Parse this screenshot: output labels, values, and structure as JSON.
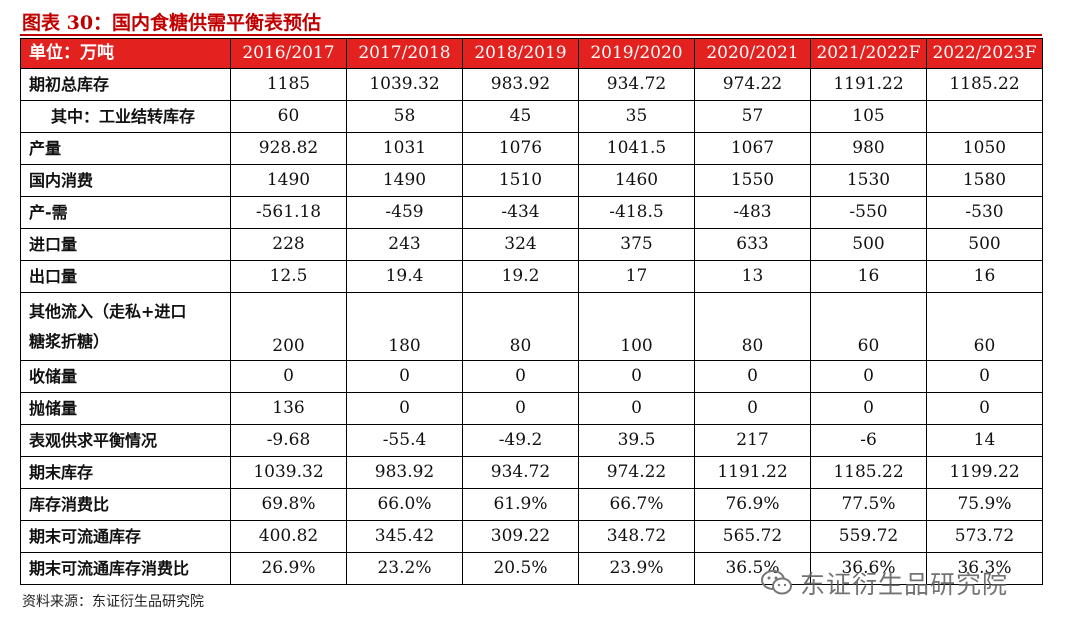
{
  "figure_title": "图表 30：国内食糖供需平衡表预估",
  "table": {
    "header_label": "单位：万吨",
    "columns": [
      "2016/2017",
      "2017/2018",
      "2018/2019",
      "2019/2020",
      "2020/2021",
      "2021/2022F",
      "2022/2023F"
    ],
    "rows": [
      {
        "label": "期初总库存",
        "values": [
          "1185",
          "1039.32",
          "983.92",
          "934.72",
          "974.22",
          "1191.22",
          "1185.22"
        ]
      },
      {
        "label": "其中：工业结转库存",
        "values": [
          "60",
          "58",
          "45",
          "35",
          "57",
          "105",
          ""
        ]
      },
      {
        "label": "产量",
        "values": [
          "928.82",
          "1031",
          "1076",
          "1041.5",
          "1067",
          "980",
          "1050"
        ]
      },
      {
        "label": "国内消费",
        "values": [
          "1490",
          "1490",
          "1510",
          "1460",
          "1550",
          "1530",
          "1580"
        ]
      },
      {
        "label": "产-需",
        "values": [
          "-561.18",
          "-459",
          "-434",
          "-418.5",
          "-483",
          "-550",
          "-530"
        ]
      },
      {
        "label": "进口量",
        "values": [
          "228",
          "243",
          "324",
          "375",
          "633",
          "500",
          "500"
        ]
      },
      {
        "label": "出口量",
        "values": [
          "12.5",
          "19.4",
          "19.2",
          "17",
          "13",
          "16",
          "16"
        ]
      },
      {
        "label": "其他流入（走私+进口糖浆折糖）",
        "label_line1": "其他流入（走私+进口",
        "label_line2": "糖浆折糖）",
        "values": [
          "200",
          "180",
          "80",
          "100",
          "80",
          "60",
          "60"
        ]
      },
      {
        "label": "收储量",
        "values": [
          "0",
          "0",
          "0",
          "0",
          "0",
          "0",
          "0"
        ]
      },
      {
        "label": "抛储量",
        "values": [
          "136",
          "0",
          "0",
          "0",
          "0",
          "0",
          "0"
        ]
      },
      {
        "label": "表观供求平衡情况",
        "values": [
          "-9.68",
          "-55.4",
          "-49.2",
          "39.5",
          "217",
          "-6",
          "14"
        ]
      },
      {
        "label": "期末库存",
        "values": [
          "1039.32",
          "983.92",
          "934.72",
          "974.22",
          "1191.22",
          "1185.22",
          "1199.22"
        ]
      },
      {
        "label": "库存消费比",
        "values": [
          "69.8%",
          "66.0%",
          "61.9%",
          "66.7%",
          "76.9%",
          "77.5%",
          "75.9%"
        ]
      },
      {
        "label": "期末可流通库存",
        "values": [
          "400.82",
          "345.42",
          "309.22",
          "348.72",
          "565.72",
          "559.72",
          "573.72"
        ]
      },
      {
        "label": "期末可流通库存消费比",
        "values": [
          "26.9%",
          "23.2%",
          "20.5%",
          "23.9%",
          "36.5%",
          "36.6%",
          "36.3%"
        ]
      }
    ]
  },
  "source": "资料来源：东证衍生品研究院",
  "watermark": {
    "text": "东证衍生品研究院",
    "icon": "wechat-icon"
  },
  "colors": {
    "title": "#c00000",
    "header_bg": "#e3211f",
    "header_text": "#ffffff"
  }
}
